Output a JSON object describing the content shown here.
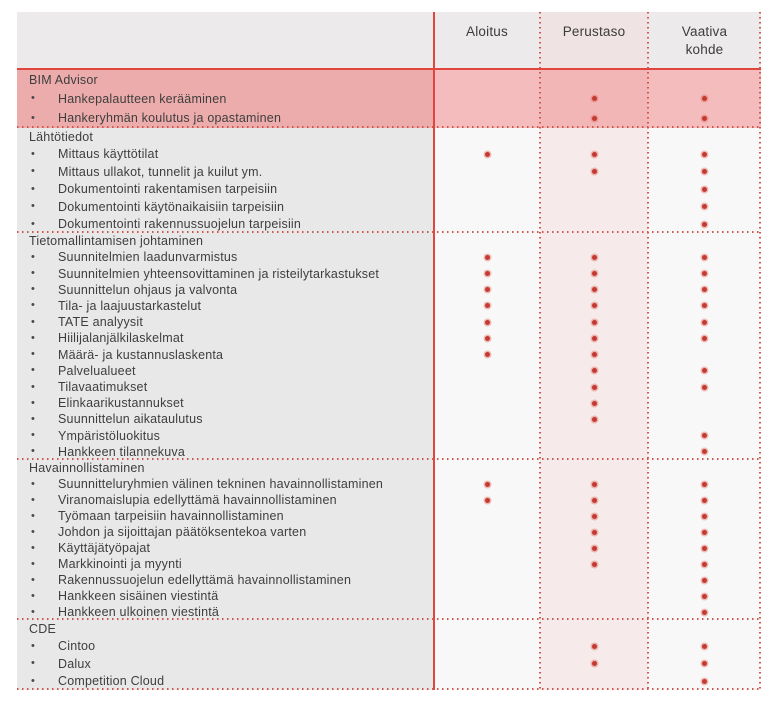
{
  "header": {
    "columns": [
      "Aloitus",
      "Perustaso",
      "Vaativa kohde"
    ]
  },
  "sections": [
    {
      "title": "BIM Advisor",
      "highlight": true,
      "rows": [
        {
          "label": "Hankepalautteen kerääminen",
          "marks": [
            false,
            true,
            true
          ]
        },
        {
          "label": "Hankeryhmän koulutus ja opastaminen",
          "marks": [
            false,
            true,
            true
          ]
        }
      ]
    },
    {
      "title": "Lähtötiedot",
      "highlight": false,
      "rows": [
        {
          "label": "Mittaus käyttötilat",
          "marks": [
            true,
            true,
            true
          ]
        },
        {
          "label": "Mittaus ullakot, tunnelit ja kuilut ym.",
          "marks": [
            false,
            true,
            true
          ]
        },
        {
          "label": "Dokumentointi rakentamisen tarpeisiin",
          "marks": [
            false,
            false,
            true
          ]
        },
        {
          "label": "Dokumentointi käytönaikaisiin tarpeisiin",
          "marks": [
            false,
            false,
            true
          ]
        },
        {
          "label": "Dokumentointi rakennussuojelun tarpeisiin",
          "marks": [
            false,
            false,
            true
          ]
        }
      ]
    },
    {
      "title": "Tietomallintamisen johtaminen",
      "highlight": false,
      "rows": [
        {
          "label": "Suunnitelmien laadunvarmistus",
          "marks": [
            true,
            true,
            true
          ]
        },
        {
          "label": "Suunnitelmien yhteensovittaminen ja risteilytarkastukset",
          "marks": [
            true,
            true,
            true
          ]
        },
        {
          "label": "Suunnittelun ohjaus ja valvonta",
          "marks": [
            true,
            true,
            true
          ]
        },
        {
          "label": "Tila- ja laajuustarkastelut",
          "marks": [
            true,
            true,
            true
          ]
        },
        {
          "label": "TATE analyysit",
          "marks": [
            true,
            true,
            true
          ]
        },
        {
          "label": "Hiilijalanjälkilaskelmat",
          "marks": [
            true,
            true,
            true
          ]
        },
        {
          "label": "Määrä- ja kustannuslaskenta",
          "marks": [
            true,
            true,
            false
          ]
        },
        {
          "label": "Palvelualueet",
          "marks": [
            false,
            true,
            true
          ]
        },
        {
          "label": "Tilavaatimukset",
          "marks": [
            false,
            true,
            true
          ]
        },
        {
          "label": "Elinkaarikustannukset",
          "marks": [
            false,
            true,
            false
          ]
        },
        {
          "label": "Suunnittelun aikataulutus",
          "marks": [
            false,
            true,
            false
          ]
        },
        {
          "label": "Ympäristöluokitus",
          "marks": [
            false,
            false,
            true
          ]
        },
        {
          "label": "Hankkeen tilannekuva",
          "marks": [
            false,
            false,
            true
          ]
        }
      ]
    },
    {
      "title": "Havainnollistaminen",
      "highlight": false,
      "rows": [
        {
          "label": "Suunnitteluryhmien välinen tekninen havainnollistaminen",
          "marks": [
            true,
            true,
            true
          ]
        },
        {
          "label": "Viranomaislupia edellyttämä havainnollistaminen",
          "marks": [
            true,
            true,
            true
          ]
        },
        {
          "label": "Työmaan tarpeisiin havainnollistaminen",
          "marks": [
            false,
            true,
            true
          ]
        },
        {
          "label": "Johdon ja sijoittajan päätöksentekoa varten",
          "marks": [
            false,
            true,
            true
          ]
        },
        {
          "label": "Käyttäjätyöpajat",
          "marks": [
            false,
            true,
            true
          ]
        },
        {
          "label": "Markkinointi ja myynti",
          "marks": [
            false,
            true,
            true
          ]
        },
        {
          "label": "Rakennussuojelun edellyttämä havainnollistaminen",
          "marks": [
            false,
            false,
            true
          ]
        },
        {
          "label": "Hankkeen sisäinen viestintä",
          "marks": [
            false,
            false,
            true
          ]
        },
        {
          "label": "Hankkeen ulkoinen viestintä",
          "marks": [
            false,
            false,
            true
          ]
        }
      ]
    },
    {
      "title": "CDE",
      "highlight": false,
      "rows": [
        {
          "label": "Cintoo",
          "marks": [
            false,
            true,
            true
          ]
        },
        {
          "label": "Dalux",
          "marks": [
            false,
            true,
            true
          ]
        },
        {
          "label": "Competition Cloud",
          "marks": [
            false,
            false,
            true
          ]
        }
      ]
    }
  ],
  "icons": {
    "mark": "service-dot-icon",
    "bullet": "bullet-icon"
  },
  "colors": {
    "accent_line": "#e2453d",
    "dotted_line": "#cf564d",
    "mark_dot": "#c23a31",
    "highlight_label_bg": "#edacac",
    "highlight_data_bg": "#f4bcbc",
    "label_column_bg": "#e9e8e8",
    "perustaso_column_bg": "#f7eaea",
    "header_bg": "#eceaea",
    "text": "#3e3e3e"
  }
}
